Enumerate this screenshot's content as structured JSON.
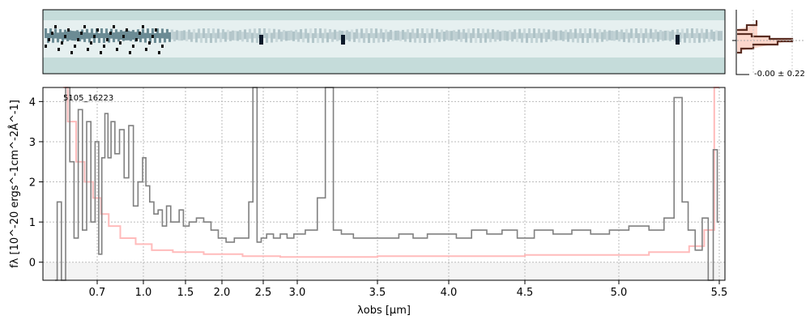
{
  "chart_data": {
    "type": "line",
    "object_label": "5105_16223",
    "xlabel": "λobs [μm]",
    "ylabel": "fλ [10^-20 ergs^-1cm^-2Å^-1]",
    "ylim": [
      -0.45,
      4.35
    ],
    "xlim": [
      0.55,
      5.52
    ],
    "grid": true,
    "x_ticks": [
      "0.7",
      "1.0",
      "1.5",
      "2.0",
      "2.5",
      "3.0",
      "3.5",
      "4.0",
      "4.5",
      "5.0",
      "5.5"
    ],
    "y_ticks": [
      "0",
      "1",
      "2",
      "3",
      "4"
    ],
    "series": [
      {
        "name": "flux",
        "color": "#808080",
        "x": [
          0.6,
          0.61,
          0.62,
          0.63,
          0.64,
          0.65,
          0.66,
          0.67,
          0.68,
          0.69,
          0.7,
          0.72,
          0.74,
          0.76,
          0.78,
          0.8,
          0.83,
          0.86,
          0.89,
          0.92,
          0.95,
          0.98,
          1.01,
          1.05,
          1.1,
          1.15,
          1.2,
          1.25,
          1.3,
          1.35,
          1.4,
          1.45,
          1.5,
          1.6,
          1.7,
          1.8,
          1.9,
          2.0,
          2.1,
          2.2,
          2.3,
          2.35,
          2.4,
          2.45,
          2.5,
          2.6,
          2.7,
          2.8,
          2.9,
          3.0,
          3.1,
          3.15,
          3.2,
          3.25,
          3.3,
          3.4,
          3.5,
          3.6,
          3.7,
          3.8,
          3.9,
          4.0,
          4.1,
          4.2,
          4.3,
          4.4,
          4.5,
          4.6,
          4.7,
          4.8,
          4.9,
          5.0,
          5.1,
          5.2,
          5.25,
          5.3,
          5.33,
          5.36,
          5.4,
          5.43,
          5.46,
          5.48,
          5.5
        ],
        "y": [
          -2,
          1.5,
          -2,
          5,
          2.5,
          0.6,
          3.8,
          0.8,
          3.5,
          1.0,
          3.0,
          0.2,
          2.6,
          3.7,
          2.6,
          3.5,
          2.7,
          3.3,
          2.1,
          3.4,
          1.4,
          2.0,
          2.6,
          1.9,
          1.5,
          1.2,
          1.3,
          0.9,
          1.4,
          1.0,
          1.0,
          1.3,
          0.9,
          1.0,
          1.1,
          1.0,
          0.8,
          0.6,
          0.5,
          0.6,
          0.6,
          1.5,
          4.5,
          0.5,
          0.6,
          0.7,
          0.6,
          0.7,
          0.6,
          0.7,
          0.8,
          1.6,
          4.5,
          0.8,
          0.7,
          0.6,
          0.6,
          0.6,
          0.7,
          0.6,
          0.7,
          0.7,
          0.6,
          0.8,
          0.7,
          0.8,
          0.6,
          0.8,
          0.7,
          0.8,
          0.7,
          0.8,
          0.9,
          0.8,
          1.1,
          4.1,
          1.5,
          0.8,
          0.3,
          1.1,
          -0.8,
          2.8,
          1.0
        ]
      },
      {
        "name": "error",
        "color": "#ffbbbb",
        "x": [
          0.62,
          0.64,
          0.66,
          0.68,
          0.7,
          0.75,
          0.8,
          0.9,
          1.0,
          1.2,
          1.5,
          2.0,
          2.5,
          3.0,
          4.0,
          5.0,
          5.3,
          5.4,
          5.45,
          5.5
        ],
        "y": [
          4.5,
          3.5,
          2.5,
          2.0,
          1.6,
          1.2,
          0.9,
          0.6,
          0.45,
          0.3,
          0.25,
          0.2,
          0.15,
          0.13,
          0.15,
          0.18,
          0.25,
          0.4,
          0.8,
          4.5
        ]
      }
    ],
    "histogram_label": "-0.00 ± 0.22"
  }
}
